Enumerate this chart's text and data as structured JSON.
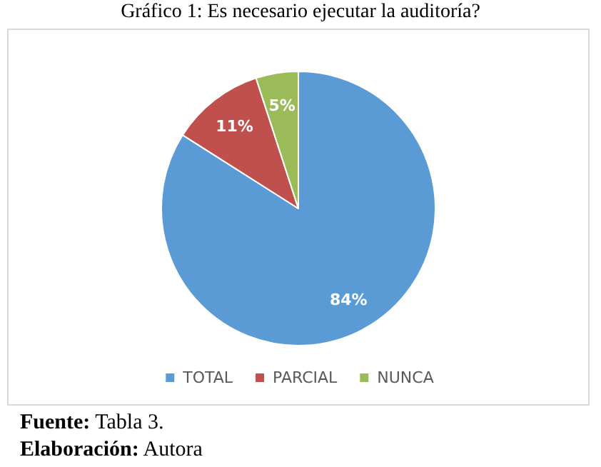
{
  "chart_data": {
    "type": "pie",
    "title": "Gráfico 1: Es necesario ejecutar la auditoría?",
    "categories": [
      "TOTAL",
      "PARCIAL",
      "NUNCA"
    ],
    "values": [
      84,
      11,
      5
    ],
    "colors": [
      "#5b9bd5",
      "#c0504d",
      "#9bbb59"
    ],
    "value_labels": [
      "84%",
      "11%",
      "5%"
    ],
    "legend": "bottom",
    "annotations": [
      "Fuente: Tabla 3.",
      "Elaboración: Autora"
    ]
  }
}
